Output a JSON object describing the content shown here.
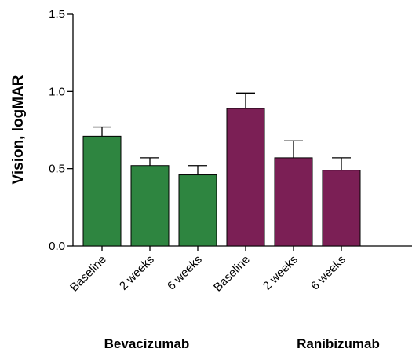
{
  "chart_data": {
    "type": "bar",
    "title": "",
    "xlabel": "",
    "ylabel": "Vision, logMAR",
    "ylim": [
      0.0,
      1.5
    ],
    "yticks": [
      "0.0",
      "0.5",
      "1.0",
      "1.5"
    ],
    "grid": false,
    "categories": [
      "Baseline",
      "2 weeks",
      "6 weeks",
      "Baseline",
      "2 weeks",
      "6 weeks"
    ],
    "groups": [
      {
        "label": "Bevacizumab",
        "color": "#2e8540",
        "indices": [
          0,
          1,
          2
        ]
      },
      {
        "label": "Ranibizumab",
        "color": "#7b1f55",
        "indices": [
          3,
          4,
          5
        ]
      }
    ],
    "values": [
      0.71,
      0.52,
      0.46,
      0.89,
      0.57,
      0.49
    ],
    "errors": [
      0.06,
      0.05,
      0.06,
      0.1,
      0.11,
      0.08
    ]
  }
}
